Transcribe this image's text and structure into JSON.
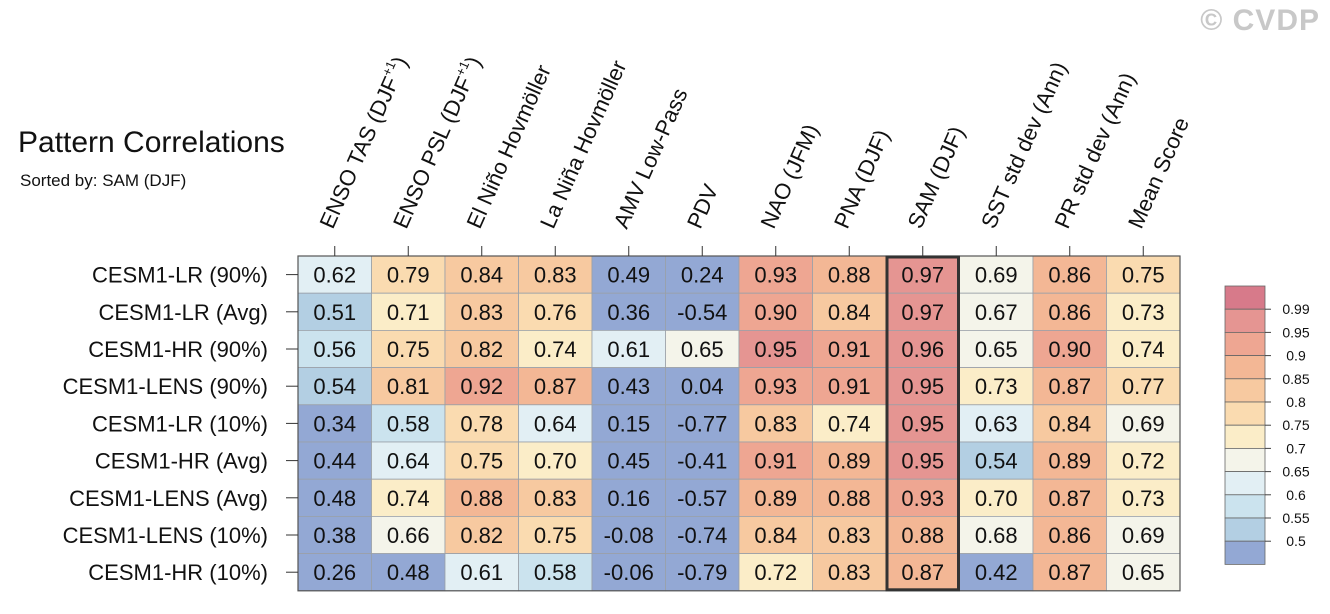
{
  "watermark": "© CVDP",
  "title": "Pattern Correlations",
  "subtitle": "Sorted by: SAM (DJF)",
  "chart_data": {
    "type": "heatmap",
    "columns": [
      "ENSO TAS (DJF+1)",
      "ENSO PSL (DJF+1)",
      "El Niño Hovmöller",
      "La Niña Hovmöller",
      "AMV Low-Pass",
      "PDV",
      "NAO (JFM)",
      "PNA (DJF)",
      "SAM (DJF)",
      "SST std dev (Ann)",
      "PR std dev (Ann)",
      "Mean Score"
    ],
    "rows": [
      "CESM1-LR (90%)",
      "CESM1-LR (Avg)",
      "CESM1-HR (90%)",
      "CESM1-LENS (90%)",
      "CESM1-LR (10%)",
      "CESM1-HR (Avg)",
      "CESM1-LENS (Avg)",
      "CESM1-LENS (10%)",
      "CESM1-HR (10%)"
    ],
    "values": [
      [
        "0.62",
        "0.79",
        "0.84",
        "0.83",
        "0.49",
        "0.24",
        "0.93",
        "0.88",
        "0.97",
        "0.69",
        "0.86",
        "0.75"
      ],
      [
        "0.51",
        "0.71",
        "0.83",
        "0.76",
        "0.36",
        "-0.54",
        "0.90",
        "0.84",
        "0.97",
        "0.67",
        "0.86",
        "0.73"
      ],
      [
        "0.56",
        "0.75",
        "0.82",
        "0.74",
        "0.61",
        "0.65",
        "0.95",
        "0.91",
        "0.96",
        "0.65",
        "0.90",
        "0.74"
      ],
      [
        "0.54",
        "0.81",
        "0.92",
        "0.87",
        "0.43",
        "0.04",
        "0.93",
        "0.91",
        "0.95",
        "0.73",
        "0.87",
        "0.77"
      ],
      [
        "0.34",
        "0.58",
        "0.78",
        "0.64",
        "0.15",
        "-0.77",
        "0.83",
        "0.74",
        "0.95",
        "0.63",
        "0.84",
        "0.69"
      ],
      [
        "0.44",
        "0.64",
        "0.75",
        "0.70",
        "0.45",
        "-0.41",
        "0.91",
        "0.89",
        "0.95",
        "0.54",
        "0.89",
        "0.72"
      ],
      [
        "0.48",
        "0.74",
        "0.88",
        "0.83",
        "0.16",
        "-0.57",
        "0.89",
        "0.88",
        "0.93",
        "0.70",
        "0.87",
        "0.73"
      ],
      [
        "0.38",
        "0.66",
        "0.82",
        "0.75",
        "-0.08",
        "-0.74",
        "0.84",
        "0.83",
        "0.88",
        "0.68",
        "0.86",
        "0.69"
      ],
      [
        "0.26",
        "0.48",
        "0.61",
        "0.58",
        "-0.06",
        "-0.79",
        "0.72",
        "0.83",
        "0.87",
        "0.42",
        "0.87",
        "0.65"
      ]
    ],
    "highlighted_column": "SAM (DJF)",
    "colorbar": {
      "labels": [
        "0.99",
        "0.95",
        "0.9",
        "0.85",
        "0.8",
        "0.75",
        "0.7",
        "0.65",
        "0.6",
        "0.55",
        "0.5"
      ],
      "colors": [
        "#d77a8a",
        "#e59592",
        "#eea692",
        "#f3b795",
        "#f7c9a0",
        "#fadbb0",
        "#fbedc8",
        "#f4f4ea",
        "#e2eff4",
        "#cbe3ee",
        "#b3cfe3",
        "#93a8d4"
      ]
    }
  }
}
